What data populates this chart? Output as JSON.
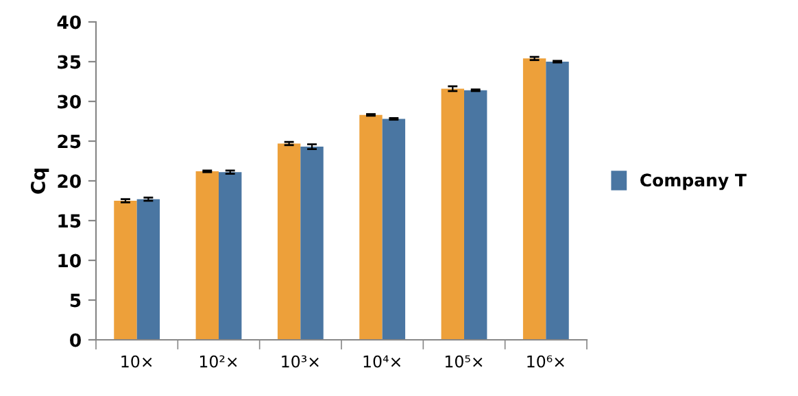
{
  "chart_data": {
    "type": "bar",
    "ylabel": "Cq",
    "categories": [
      "10×",
      "10²×",
      "10³×",
      "10⁴×",
      "10⁵×",
      "10⁶×"
    ],
    "series": [
      {
        "color": "#eda03a",
        "values": [
          17.5,
          21.2,
          24.7,
          28.3,
          31.6,
          35.4
        ],
        "errors": [
          0.2,
          0.1,
          0.2,
          0.1,
          0.3,
          0.2
        ]
      },
      {
        "name": "Company T",
        "color": "#4a76a2",
        "values": [
          17.7,
          21.1,
          24.3,
          27.8,
          31.4,
          35.0
        ],
        "errors": [
          0.2,
          0.2,
          0.3,
          0.1,
          0.1,
          0.1
        ]
      }
    ],
    "ylim": [
      0,
      40
    ],
    "yticks": [
      0,
      5,
      10,
      15,
      20,
      25,
      30,
      35,
      40
    ],
    "grid": false,
    "legend": "right"
  }
}
